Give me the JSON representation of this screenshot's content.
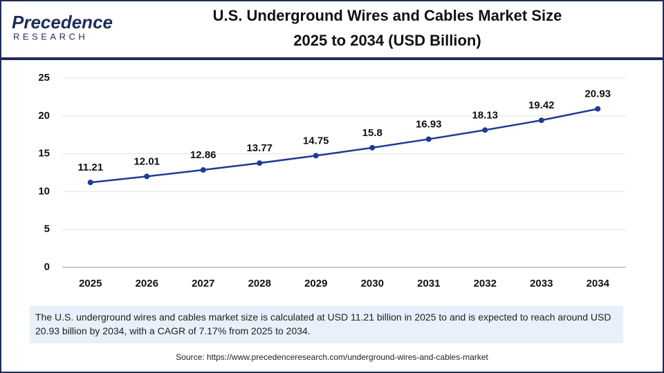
{
  "logo": {
    "name": "Precedence",
    "sub": "RESEARCH"
  },
  "chart_data": {
    "type": "line",
    "title": "U.S. Underground Wires and Cables Market Size",
    "subtitle": "2025 to 2034 (USD Billion)",
    "categories": [
      "2025",
      "2026",
      "2027",
      "2028",
      "2029",
      "2030",
      "2031",
      "2032",
      "2033",
      "2034"
    ],
    "values": [
      11.21,
      12.01,
      12.86,
      13.77,
      14.75,
      15.8,
      16.93,
      18.13,
      19.42,
      20.93
    ],
    "color": "#1f3a93",
    "ylim": [
      0,
      25
    ],
    "yticks": [
      0,
      5,
      10,
      15,
      20,
      25
    ],
    "grid": true,
    "description": "The U.S. underground wires and cables market size is calculated at USD 11.21 billion in 2025 to and is expected to reach around USD 20.93 billion by 2034, with a CAGR of 7.17% from 2025 to 2034.",
    "source": "Source: https://www.precedenceresearch.com/underground-wires-and-cables-market"
  }
}
